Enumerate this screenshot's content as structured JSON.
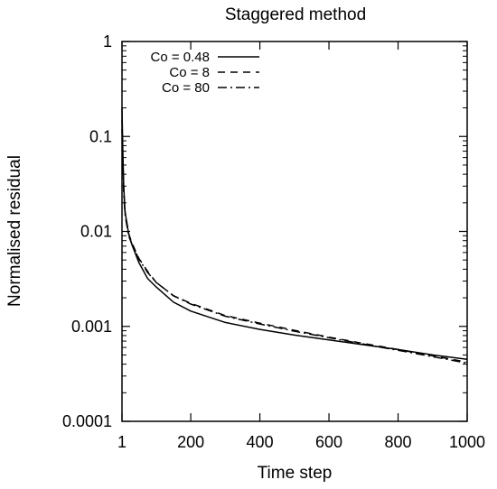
{
  "chart_data": {
    "type": "line",
    "title": "Staggered method",
    "xlabel": "Time step",
    "ylabel": "Normalised residual",
    "xlim": [
      1,
      1000
    ],
    "ylim": [
      0.0001,
      1
    ],
    "yscale": "log",
    "grid": false,
    "legend_position": "top-left",
    "x_ticks": [
      {
        "value": 1,
        "label": "1"
      },
      {
        "value": 200,
        "label": "200"
      },
      {
        "value": 400,
        "label": "400"
      },
      {
        "value": 600,
        "label": "600"
      },
      {
        "value": 800,
        "label": "800"
      },
      {
        "value": 1000,
        "label": "1000"
      }
    ],
    "y_ticks": [
      {
        "value": 1,
        "label": "1"
      },
      {
        "value": 0.1,
        "label": "0.1"
      },
      {
        "value": 0.01,
        "label": "0.01"
      },
      {
        "value": 0.001,
        "label": "0.001"
      },
      {
        "value": 0.0001,
        "label": "0.0001"
      }
    ],
    "series": [
      {
        "name": "Co = 0.48",
        "dash": "solid",
        "color": "#000000",
        "points": [
          [
            1,
            0.2
          ],
          [
            3,
            0.08
          ],
          [
            6,
            0.03
          ],
          [
            10,
            0.016
          ],
          [
            20,
            0.0095
          ],
          [
            30,
            0.0072
          ],
          [
            50,
            0.0047
          ],
          [
            75,
            0.0032
          ],
          [
            100,
            0.0026
          ],
          [
            150,
            0.0018
          ],
          [
            200,
            0.00145
          ],
          [
            300,
            0.0011
          ],
          [
            400,
            0.00093
          ],
          [
            500,
            0.00081
          ],
          [
            600,
            0.00072
          ],
          [
            700,
            0.00064
          ],
          [
            800,
            0.00057
          ],
          [
            900,
            0.0005
          ],
          [
            1000,
            0.00045
          ]
        ]
      },
      {
        "name": "Co = 8",
        "dash": "dashed",
        "color": "#000000",
        "points": [
          [
            1,
            0.15
          ],
          [
            3,
            0.07
          ],
          [
            6,
            0.028
          ],
          [
            10,
            0.016
          ],
          [
            20,
            0.0095
          ],
          [
            30,
            0.0075
          ],
          [
            50,
            0.0052
          ],
          [
            75,
            0.0038
          ],
          [
            100,
            0.0029
          ],
          [
            150,
            0.0021
          ],
          [
            200,
            0.00175
          ],
          [
            300,
            0.0013
          ],
          [
            400,
            0.00108
          ],
          [
            500,
            0.00091
          ],
          [
            600,
            0.00077
          ],
          [
            700,
            0.00066
          ],
          [
            800,
            0.00057
          ],
          [
            900,
            0.00049
          ],
          [
            1000,
            0.00042
          ]
        ]
      },
      {
        "name": "Co = 80",
        "dash": "dashdot",
        "color": "#000000",
        "points": [
          [
            1,
            0.12
          ],
          [
            3,
            0.06
          ],
          [
            6,
            0.025
          ],
          [
            10,
            0.015
          ],
          [
            20,
            0.009
          ],
          [
            30,
            0.0073
          ],
          [
            50,
            0.0051
          ],
          [
            75,
            0.0037
          ],
          [
            100,
            0.0029
          ],
          [
            150,
            0.0021
          ],
          [
            200,
            0.00172
          ],
          [
            300,
            0.00128
          ],
          [
            400,
            0.00106
          ],
          [
            500,
            0.00089
          ],
          [
            600,
            0.00076
          ],
          [
            700,
            0.00065
          ],
          [
            800,
            0.00056
          ],
          [
            900,
            0.00048
          ],
          [
            1000,
            0.00041
          ]
        ]
      }
    ]
  }
}
